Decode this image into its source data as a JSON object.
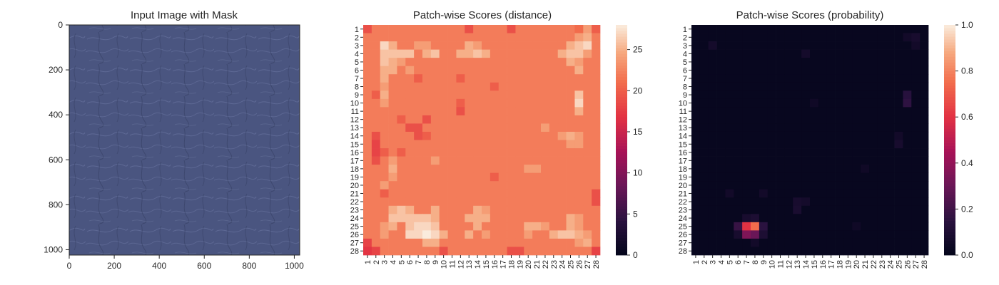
{
  "chart_data": [
    {
      "type": "image",
      "title": "Input Image with Mask",
      "xlim": [
        0,
        1024
      ],
      "ylim": [
        1024,
        0
      ],
      "xticks": [
        0,
        200,
        400,
        600,
        800,
        1000
      ],
      "yticks": [
        0,
        200,
        400,
        600,
        800,
        1000
      ],
      "image_color": "#4a5580",
      "texture": "leather"
    },
    {
      "type": "heatmap",
      "title": "Patch-wise Scores (distance)",
      "grid_size": 28,
      "row_labels": [
        "1",
        "2",
        "3",
        "4",
        "5",
        "6",
        "7",
        "8",
        "9",
        "10",
        "11",
        "12",
        "13",
        "14",
        "15",
        "16",
        "17",
        "18",
        "19",
        "20",
        "21",
        "22",
        "23",
        "24",
        "25",
        "26",
        "27",
        "28"
      ],
      "col_labels": [
        "1",
        "2",
        "3",
        "4",
        "5",
        "6",
        "7",
        "8",
        "9",
        "10",
        "11",
        "12",
        "13",
        "14",
        "15",
        "16",
        "17",
        "18",
        "19",
        "20",
        "21",
        "22",
        "23",
        "24",
        "25",
        "26",
        "27",
        "28"
      ],
      "colorbar": {
        "min": 0,
        "max": 28,
        "ticks": [
          0,
          5,
          10,
          15,
          20,
          25
        ]
      },
      "colormap": "rocket",
      "base_value": 22,
      "cells": [
        {
          "r": 1,
          "c": 1,
          "v": 19
        },
        {
          "r": 1,
          "c": 28,
          "v": 20
        },
        {
          "r": 28,
          "c": 1,
          "v": 17
        },
        {
          "r": 28,
          "c": 28,
          "v": 18
        },
        {
          "r": 1,
          "c": 13,
          "v": 19
        },
        {
          "r": 1,
          "c": 18,
          "v": 19
        },
        {
          "r": 1,
          "c": 26,
          "v": 21
        },
        {
          "r": 1,
          "c": 27,
          "v": 24
        },
        {
          "r": 2,
          "c": 26,
          "v": 24
        },
        {
          "r": 2,
          "c": 27,
          "v": 25
        },
        {
          "r": 3,
          "c": 3,
          "v": 27
        },
        {
          "r": 3,
          "c": 4,
          "v": 25
        },
        {
          "r": 3,
          "c": 7,
          "v": 24
        },
        {
          "r": 3,
          "c": 8,
          "v": 24
        },
        {
          "r": 3,
          "c": 13,
          "v": 25
        },
        {
          "r": 3,
          "c": 14,
          "v": 24
        },
        {
          "r": 3,
          "c": 25,
          "v": 25
        },
        {
          "r": 3,
          "c": 26,
          "v": 26
        },
        {
          "r": 3,
          "c": 27,
          "v": 27
        },
        {
          "r": 4,
          "c": 3,
          "v": 26
        },
        {
          "r": 4,
          "c": 4,
          "v": 26
        },
        {
          "r": 4,
          "c": 5,
          "v": 26
        },
        {
          "r": 4,
          "c": 6,
          "v": 26
        },
        {
          "r": 4,
          "c": 8,
          "v": 25
        },
        {
          "r": 4,
          "c": 9,
          "v": 26
        },
        {
          "r": 4,
          "c": 12,
          "v": 25
        },
        {
          "r": 4,
          "c": 13,
          "v": 25
        },
        {
          "r": 4,
          "c": 14,
          "v": 26
        },
        {
          "r": 4,
          "c": 15,
          "v": 25
        },
        {
          "r": 4,
          "c": 24,
          "v": 25
        },
        {
          "r": 4,
          "c": 25,
          "v": 26
        },
        {
          "r": 4,
          "c": 26,
          "v": 26
        },
        {
          "r": 4,
          "c": 27,
          "v": 24
        },
        {
          "r": 5,
          "c": 3,
          "v": 26
        },
        {
          "r": 5,
          "c": 4,
          "v": 25
        },
        {
          "r": 5,
          "c": 5,
          "v": 24
        },
        {
          "r": 5,
          "c": 25,
          "v": 25
        },
        {
          "r": 5,
          "c": 26,
          "v": 24
        },
        {
          "r": 6,
          "c": 3,
          "v": 25
        },
        {
          "r": 6,
          "c": 4,
          "v": 25
        },
        {
          "r": 6,
          "c": 6,
          "v": 24
        },
        {
          "r": 6,
          "c": 26,
          "v": 25
        },
        {
          "r": 7,
          "c": 3,
          "v": 25
        },
        {
          "r": 7,
          "c": 7,
          "v": 20
        },
        {
          "r": 7,
          "c": 12,
          "v": 20
        },
        {
          "r": 8,
          "c": 3,
          "v": 24
        },
        {
          "r": 8,
          "c": 16,
          "v": 20
        },
        {
          "r": 9,
          "c": 2,
          "v": 20
        },
        {
          "r": 9,
          "c": 3,
          "v": 25
        },
        {
          "r": 9,
          "c": 26,
          "v": 26
        },
        {
          "r": 10,
          "c": 3,
          "v": 24
        },
        {
          "r": 10,
          "c": 12,
          "v": 20
        },
        {
          "r": 10,
          "c": 26,
          "v": 27
        },
        {
          "r": 11,
          "c": 26,
          "v": 25
        },
        {
          "r": 11,
          "c": 12,
          "v": 19
        },
        {
          "r": 12,
          "c": 5,
          "v": 20
        },
        {
          "r": 12,
          "c": 8,
          "v": 19
        },
        {
          "r": 13,
          "c": 6,
          "v": 19
        },
        {
          "r": 13,
          "c": 7,
          "v": 19
        },
        {
          "r": 13,
          "c": 22,
          "v": 24
        },
        {
          "r": 14,
          "c": 2,
          "v": 19
        },
        {
          "r": 14,
          "c": 7,
          "v": 19
        },
        {
          "r": 14,
          "c": 8,
          "v": 20
        },
        {
          "r": 14,
          "c": 24,
          "v": 24
        },
        {
          "r": 14,
          "c": 25,
          "v": 25
        },
        {
          "r": 14,
          "c": 26,
          "v": 24
        },
        {
          "r": 15,
          "c": 2,
          "v": 18
        },
        {
          "r": 15,
          "c": 25,
          "v": 24
        },
        {
          "r": 15,
          "c": 26,
          "v": 24
        },
        {
          "r": 16,
          "c": 2,
          "v": 18
        },
        {
          "r": 16,
          "c": 3,
          "v": 20
        },
        {
          "r": 16,
          "c": 5,
          "v": 20
        },
        {
          "r": 17,
          "c": 2,
          "v": 19
        },
        {
          "r": 17,
          "c": 4,
          "v": 24
        },
        {
          "r": 17,
          "c": 9,
          "v": 24
        },
        {
          "r": 18,
          "c": 4,
          "v": 25
        },
        {
          "r": 18,
          "c": 20,
          "v": 24
        },
        {
          "r": 18,
          "c": 21,
          "v": 24
        },
        {
          "r": 19,
          "c": 4,
          "v": 24
        },
        {
          "r": 19,
          "c": 16,
          "v": 20
        },
        {
          "r": 20,
          "c": 3,
          "v": 24
        },
        {
          "r": 21,
          "c": 3,
          "v": 20
        },
        {
          "r": 21,
          "c": 28,
          "v": 19
        },
        {
          "r": 22,
          "c": 28,
          "v": 19
        },
        {
          "r": 23,
          "c": 4,
          "v": 25
        },
        {
          "r": 23,
          "c": 5,
          "v": 26
        },
        {
          "r": 23,
          "c": 6,
          "v": 25
        },
        {
          "r": 23,
          "c": 9,
          "v": 25
        },
        {
          "r": 23,
          "c": 14,
          "v": 25
        },
        {
          "r": 23,
          "c": 15,
          "v": 24
        },
        {
          "r": 24,
          "c": 4,
          "v": 26
        },
        {
          "r": 24,
          "c": 5,
          "v": 26
        },
        {
          "r": 24,
          "c": 6,
          "v": 26
        },
        {
          "r": 24,
          "c": 7,
          "v": 26
        },
        {
          "r": 24,
          "c": 8,
          "v": 26
        },
        {
          "r": 24,
          "c": 9,
          "v": 25
        },
        {
          "r": 24,
          "c": 13,
          "v": 25
        },
        {
          "r": 24,
          "c": 14,
          "v": 25
        },
        {
          "r": 24,
          "c": 15,
          "v": 25
        },
        {
          "r": 24,
          "c": 25,
          "v": 25
        },
        {
          "r": 24,
          "c": 26,
          "v": 24
        },
        {
          "r": 25,
          "c": 3,
          "v": 24
        },
        {
          "r": 25,
          "c": 4,
          "v": 25
        },
        {
          "r": 25,
          "c": 6,
          "v": 26
        },
        {
          "r": 25,
          "c": 7,
          "v": 27
        },
        {
          "r": 25,
          "c": 8,
          "v": 27
        },
        {
          "r": 25,
          "c": 9,
          "v": 26
        },
        {
          "r": 25,
          "c": 14,
          "v": 25
        },
        {
          "r": 25,
          "c": 20,
          "v": 25
        },
        {
          "r": 25,
          "c": 21,
          "v": 25
        },
        {
          "r": 25,
          "c": 22,
          "v": 24
        },
        {
          "r": 25,
          "c": 25,
          "v": 25
        },
        {
          "r": 25,
          "c": 26,
          "v": 24
        },
        {
          "r": 26,
          "c": 3,
          "v": 24
        },
        {
          "r": 26,
          "c": 6,
          "v": 27
        },
        {
          "r": 26,
          "c": 7,
          "v": 27
        },
        {
          "r": 26,
          "c": 8,
          "v": 28
        },
        {
          "r": 26,
          "c": 9,
          "v": 27
        },
        {
          "r": 26,
          "c": 10,
          "v": 25
        },
        {
          "r": 26,
          "c": 13,
          "v": 25
        },
        {
          "r": 26,
          "c": 15,
          "v": 24
        },
        {
          "r": 26,
          "c": 20,
          "v": 24
        },
        {
          "r": 26,
          "c": 23,
          "v": 25
        },
        {
          "r": 26,
          "c": 24,
          "v": 26
        },
        {
          "r": 26,
          "c": 25,
          "v": 26
        },
        {
          "r": 26,
          "c": 26,
          "v": 25
        },
        {
          "r": 26,
          "c": 27,
          "v": 24
        },
        {
          "r": 27,
          "c": 1,
          "v": 18
        },
        {
          "r": 27,
          "c": 8,
          "v": 25
        },
        {
          "r": 27,
          "c": 9,
          "v": 25
        },
        {
          "r": 27,
          "c": 26,
          "v": 24
        },
        {
          "r": 27,
          "c": 27,
          "v": 25
        },
        {
          "r": 28,
          "c": 2,
          "v": 18
        },
        {
          "r": 28,
          "c": 10,
          "v": 19
        },
        {
          "r": 28,
          "c": 18,
          "v": 19
        },
        {
          "r": 28,
          "c": 19,
          "v": 19
        }
      ]
    },
    {
      "type": "heatmap",
      "title": "Patch-wise Scores (probability)",
      "grid_size": 28,
      "row_labels": [
        "1",
        "2",
        "3",
        "4",
        "5",
        "6",
        "7",
        "8",
        "9",
        "10",
        "11",
        "12",
        "13",
        "14",
        "15",
        "16",
        "17",
        "18",
        "19",
        "20",
        "21",
        "22",
        "23",
        "24",
        "25",
        "26",
        "27",
        "28"
      ],
      "col_labels": [
        "1",
        "2",
        "3",
        "4",
        "5",
        "6",
        "7",
        "8",
        "9",
        "10",
        "11",
        "12",
        "13",
        "14",
        "15",
        "16",
        "17",
        "18",
        "19",
        "20",
        "21",
        "22",
        "23",
        "24",
        "25",
        "26",
        "27",
        "28"
      ],
      "colorbar": {
        "min": 0.0,
        "max": 1.0,
        "ticks": [
          "0.0",
          "0.2",
          "0.4",
          "0.6",
          "0.8",
          "1.0"
        ]
      },
      "colormap": "rocket",
      "base_value": 0.02,
      "cells": [
        {
          "r": 25,
          "c": 7,
          "v": 0.6
        },
        {
          "r": 25,
          "c": 8,
          "v": 0.75
        },
        {
          "r": 25,
          "c": 9,
          "v": 0.15
        },
        {
          "r": 25,
          "c": 6,
          "v": 0.18
        },
        {
          "r": 26,
          "c": 7,
          "v": 0.35
        },
        {
          "r": 26,
          "c": 8,
          "v": 0.3
        },
        {
          "r": 26,
          "c": 9,
          "v": 0.1
        },
        {
          "r": 26,
          "c": 6,
          "v": 0.08
        },
        {
          "r": 24,
          "c": 7,
          "v": 0.08
        },
        {
          "r": 24,
          "c": 8,
          "v": 0.1
        },
        {
          "r": 27,
          "c": 8,
          "v": 0.06
        },
        {
          "r": 9,
          "c": 26,
          "v": 0.14
        },
        {
          "r": 10,
          "c": 26,
          "v": 0.16
        },
        {
          "r": 2,
          "c": 26,
          "v": 0.06
        },
        {
          "r": 2,
          "c": 27,
          "v": 0.08
        },
        {
          "r": 3,
          "c": 27,
          "v": 0.06
        },
        {
          "r": 3,
          "c": 3,
          "v": 0.07
        },
        {
          "r": 4,
          "c": 14,
          "v": 0.07
        },
        {
          "r": 22,
          "c": 13,
          "v": 0.08
        },
        {
          "r": 23,
          "c": 13,
          "v": 0.09
        },
        {
          "r": 22,
          "c": 14,
          "v": 0.07
        },
        {
          "r": 14,
          "c": 25,
          "v": 0.06
        },
        {
          "r": 15,
          "c": 25,
          "v": 0.08
        },
        {
          "r": 21,
          "c": 5,
          "v": 0.06
        },
        {
          "r": 21,
          "c": 9,
          "v": 0.06
        },
        {
          "r": 18,
          "c": 21,
          "v": 0.05
        },
        {
          "r": 10,
          "c": 15,
          "v": 0.05
        },
        {
          "r": 25,
          "c": 20,
          "v": 0.05
        }
      ]
    }
  ]
}
